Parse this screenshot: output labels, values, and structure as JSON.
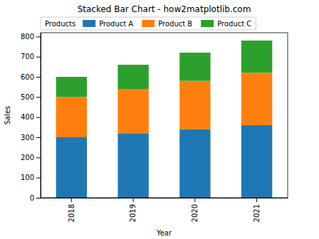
{
  "chart_data": {
    "type": "bar",
    "stacked": true,
    "title": "Stacked Bar Chart - how2matplotlib.com",
    "x_label": "Year",
    "y_label": "Sales",
    "legend_title": "Products",
    "legend": "upper left",
    "categories": [
      "2018",
      "2019",
      "2020",
      "2021"
    ],
    "series": [
      {
        "name": "Product A",
        "color": "#1f77b4",
        "values": [
          300,
          320,
          340,
          360
        ]
      },
      {
        "name": "Product B",
        "color": "#ff7f0e",
        "values": [
          200,
          220,
          240,
          260
        ]
      },
      {
        "name": "Product C",
        "color": "#2ca02c",
        "values": [
          100,
          120,
          140,
          160
        ]
      }
    ],
    "ylim": [
      0,
      819
    ],
    "yticks": [
      0,
      100,
      200,
      300,
      400,
      500,
      600,
      700,
      800
    ],
    "grid": false
  }
}
